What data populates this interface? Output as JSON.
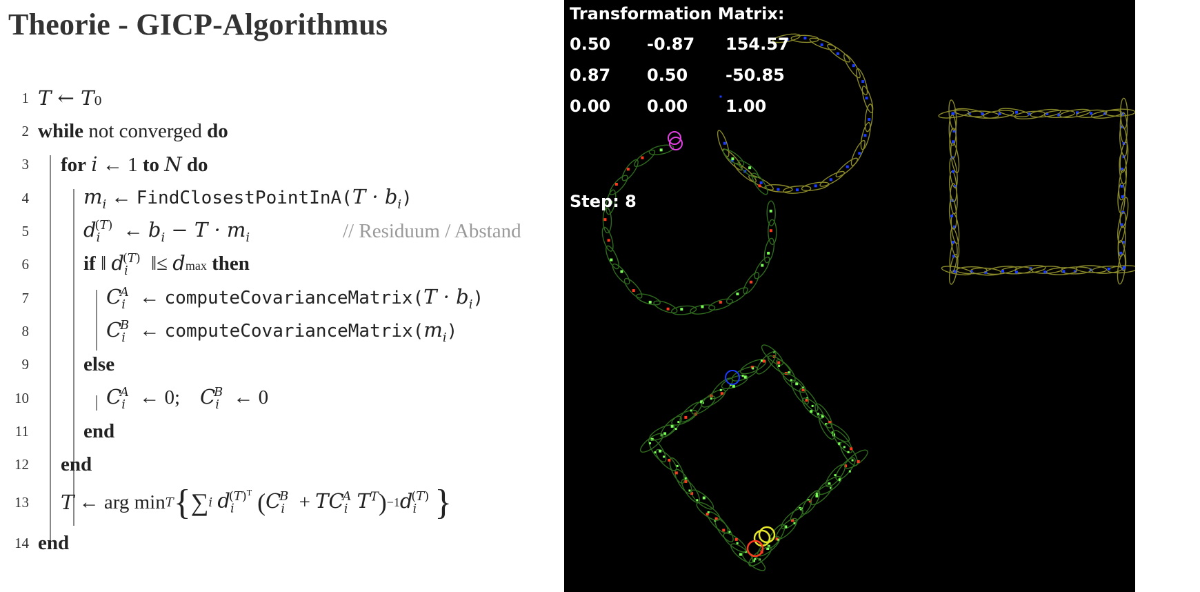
{
  "title": "Theorie - GICP-Algorithmus",
  "algorithm": {
    "line_numbers": [
      "1",
      "2",
      "3",
      "4",
      "5",
      "6",
      "7",
      "8",
      "9",
      "10",
      "11",
      "12",
      "13",
      "14"
    ],
    "keywords": {
      "while": "while",
      "not_converged": "not converged",
      "do": "do",
      "for": "for",
      "to": "to",
      "if": "if",
      "then": "then",
      "else": "else",
      "end": "end"
    },
    "functions": {
      "find_closest": "FindClosestPointInA",
      "compute_cov": "computeCovarianceMatrix"
    },
    "comment": "// Residuum / Abstand"
  },
  "visualization": {
    "matrix_title": "Transformation Matrix:",
    "matrix": [
      [
        "0.50",
        "-0.87",
        "154.57"
      ],
      [
        "0.87",
        "0.50",
        "-50.85"
      ],
      [
        "0.00",
        "0.00",
        "1.00"
      ]
    ],
    "step_label": "Step: 8",
    "colors": {
      "background": "#000000",
      "ellipse_yellow": "#8a8a2a",
      "ellipse_green": "#2f6b1e",
      "point_blue": "#1a3cff",
      "point_green": "#7dff5a",
      "point_red": "#ff3b1f",
      "magenta": "#e040e0",
      "yellow_ring": "#e8e82a"
    }
  }
}
